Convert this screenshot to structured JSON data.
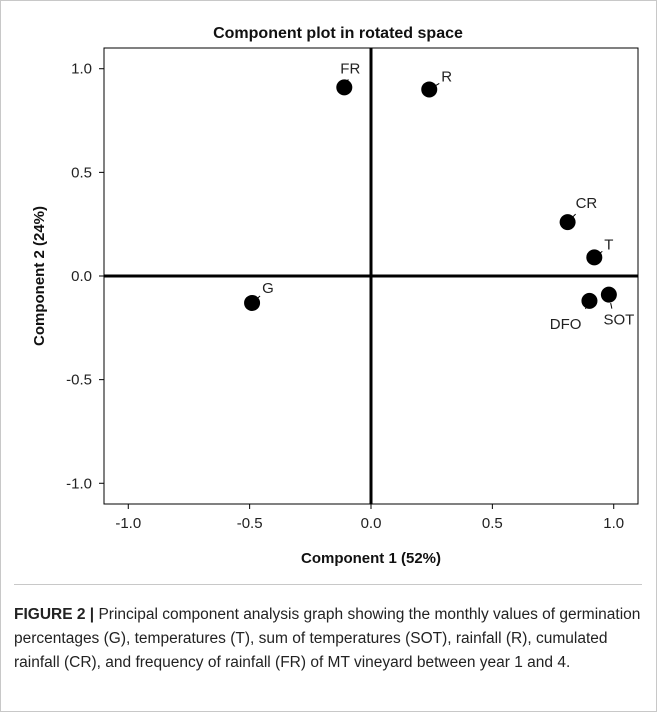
{
  "chart_data": {
    "type": "scatter",
    "title": "Component plot in rotated space",
    "xlabel": "Component 1 (52%)",
    "ylabel": "Component 2 (24%)",
    "xlim": [
      -1.1,
      1.1
    ],
    "ylim": [
      -1.1,
      1.1
    ],
    "xticks": [
      -1.0,
      -0.5,
      0.0,
      0.5,
      1.0
    ],
    "yticks": [
      -1.0,
      -0.5,
      0.0,
      0.5,
      1.0
    ],
    "x_tick_labels": [
      "-1.0",
      "-0.5",
      "0.0",
      "0.5",
      "1.0"
    ],
    "y_tick_labels": [
      "-1.0",
      "-0.5",
      "0.0",
      "0.5",
      "1.0"
    ],
    "grid": false,
    "reference_lines": {
      "x": 0,
      "y": 0
    },
    "points": [
      {
        "label": "FR",
        "x": -0.11,
        "y": 0.91
      },
      {
        "label": "R",
        "x": 0.24,
        "y": 0.9
      },
      {
        "label": "CR",
        "x": 0.81,
        "y": 0.26
      },
      {
        "label": "T",
        "x": 0.92,
        "y": 0.09
      },
      {
        "label": "G",
        "x": -0.49,
        "y": -0.13
      },
      {
        "label": "DFO",
        "x": 0.9,
        "y": -0.12
      },
      {
        "label": "SOT",
        "x": 0.98,
        "y": -0.09
      }
    ],
    "colors": {
      "points": "#000000",
      "axes": "#000000"
    }
  },
  "caption": {
    "lead": "FIGURE 2 |",
    "text": " Principal component analysis graph showing the monthly values of germination percentages (G), temperatures (T), sum of temperatures (SOT), rainfall (R), cumulated rainfall (CR), and frequency of rainfall (FR) of MT vineyard between year 1 and 4."
  }
}
